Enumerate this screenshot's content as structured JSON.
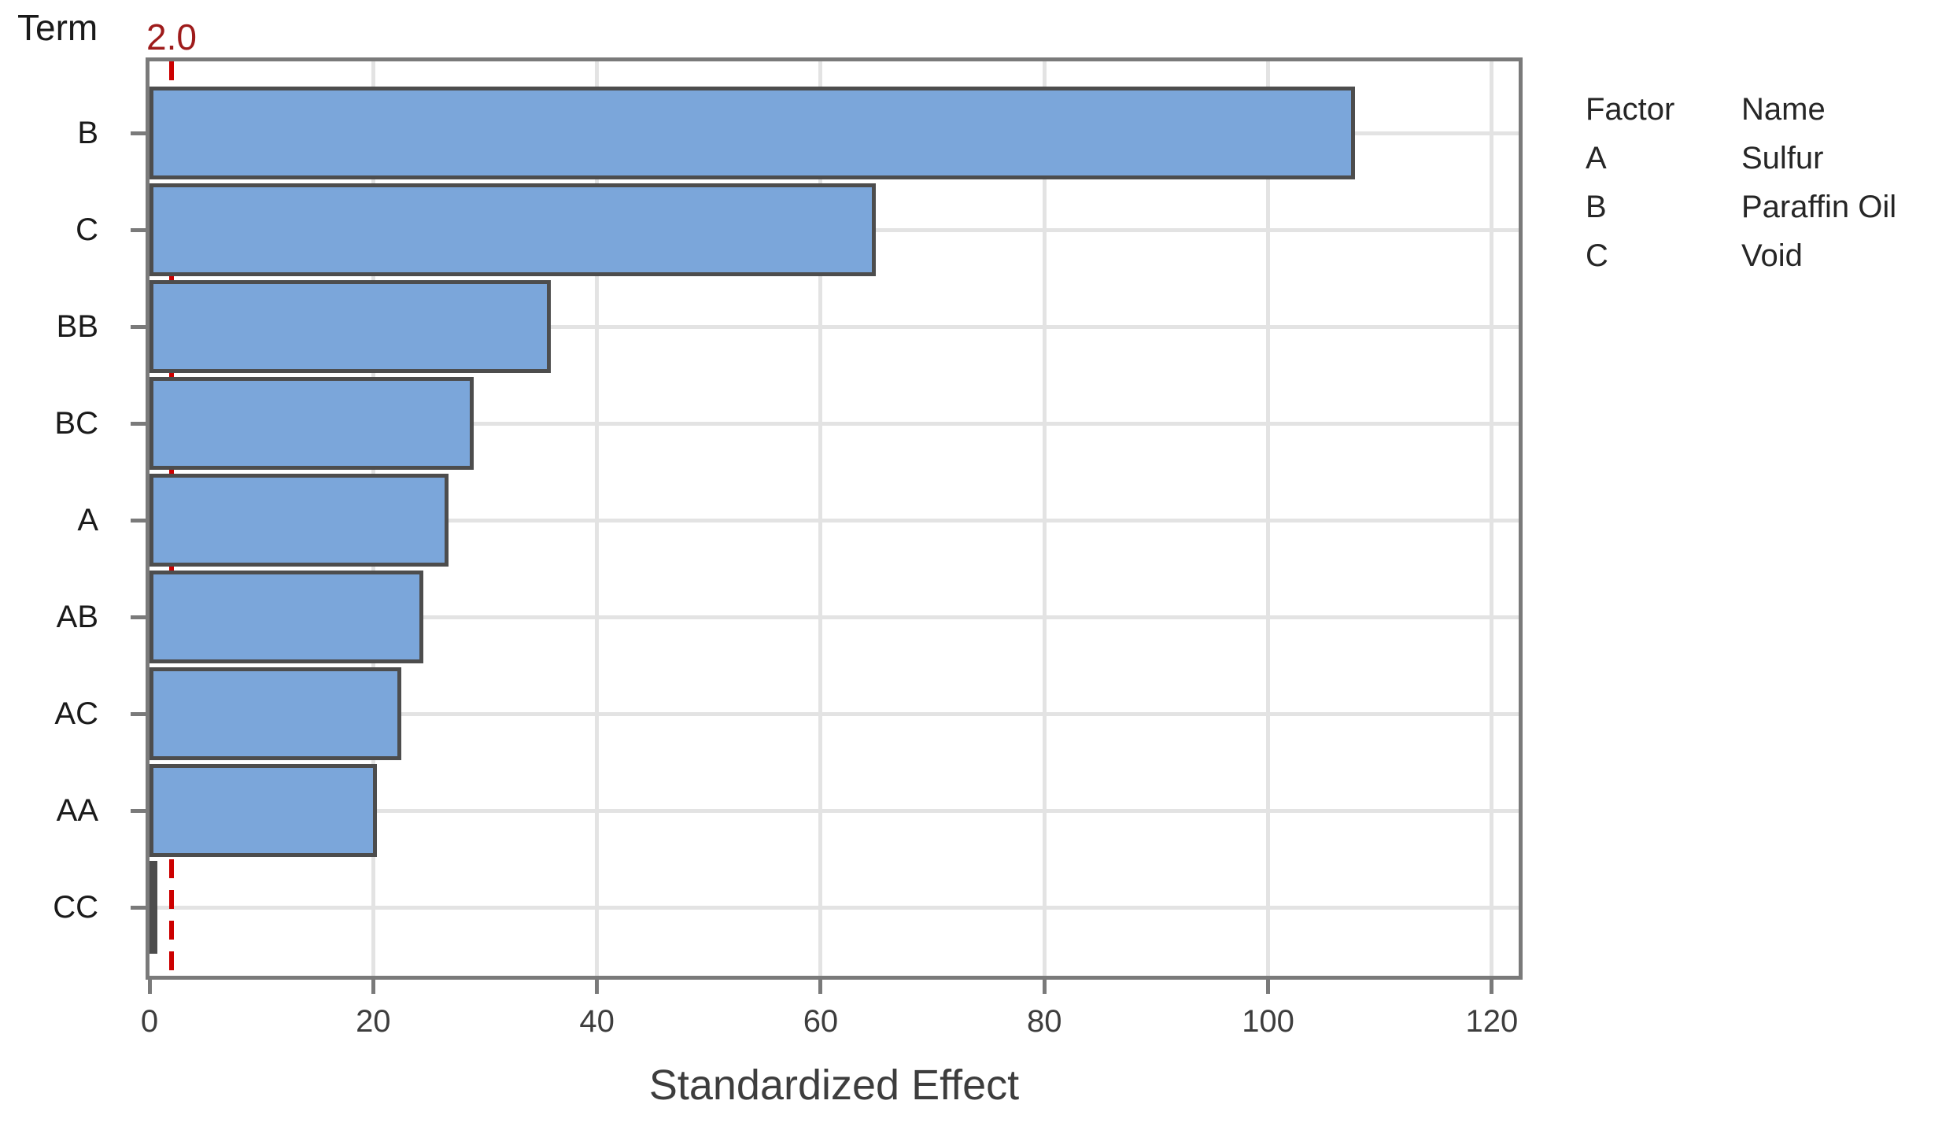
{
  "chart": {
    "y_axis_title": "Term",
    "x_axis_title": "Standardized Effect",
    "reference_line_label": "2.0"
  },
  "chart_data": {
    "type": "bar",
    "orientation": "horizontal",
    "title": "",
    "xlabel": "Standardized Effect",
    "ylabel": "Term",
    "categories": [
      "B",
      "C",
      "BB",
      "BC",
      "A",
      "AB",
      "AC",
      "AA",
      "CC"
    ],
    "values": [
      107.8,
      64.9,
      35.9,
      29.0,
      26.7,
      24.5,
      22.5,
      20.3,
      0.5
    ],
    "reference_line": 2.0,
    "xlim": [
      0,
      122.4
    ],
    "xticks": [
      0,
      20,
      40,
      60,
      80,
      100,
      120
    ],
    "grid": {
      "vertical": "at x ticks",
      "horizontal": "at category centers"
    },
    "legend_position": "right",
    "colors": {
      "bar_fill": "#7BA6DA",
      "bar_border": "#4D4D4D",
      "plot_border": "#7A7A7A",
      "gridline": "#E3E3E3",
      "reference_line": "#CC0000",
      "reference_label": "#9E1B1B",
      "label_text": "#1A1A1A",
      "axis_text": "#3D3D3D"
    }
  },
  "legend": {
    "headers": [
      "Factor",
      "Name"
    ],
    "rows": [
      {
        "factor": "A",
        "name": "Sulfur"
      },
      {
        "factor": "B",
        "name": "Paraffin Oil"
      },
      {
        "factor": "C",
        "name": "Void"
      }
    ]
  }
}
